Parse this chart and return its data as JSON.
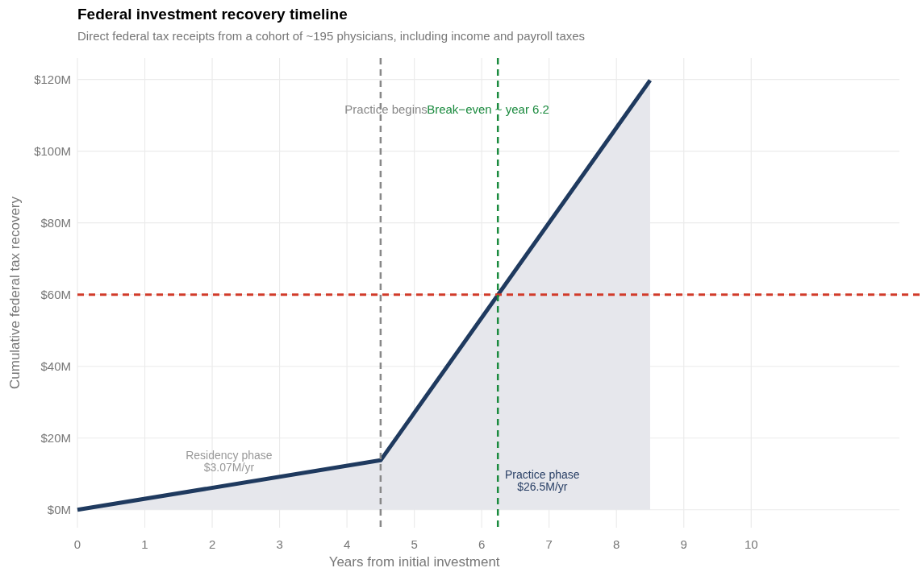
{
  "chart_data": {
    "type": "area",
    "title": "Federal investment recovery timeline",
    "subtitle": "Direct federal tax receipts from a cohort of ~195 physicians, including income and payroll taxes",
    "xlabel": "Years from initial investment",
    "ylabel": "Cumulative federal tax recovery",
    "x": [
      0,
      4.5,
      8.5
    ],
    "series": [
      {
        "color": "#1f3a5f",
        "values": [
          0,
          13.8,
          119.8
        ]
      }
    ],
    "xlim": [
      0,
      12.2
    ],
    "xticks": [
      0,
      1,
      2,
      3,
      4,
      5,
      6,
      7,
      8,
      9,
      10
    ],
    "ylim": [
      -5,
      126
    ],
    "yticks": [
      {
        "value": 0,
        "label": "$0M"
      },
      {
        "value": 20,
        "label": "$20M"
      },
      {
        "value": 40,
        "label": "$40M"
      },
      {
        "value": 60,
        "label": "$60M"
      },
      {
        "value": 80,
        "label": "$80M"
      },
      {
        "value": 100,
        "label": "$100M"
      },
      {
        "value": 120,
        "label": "$120M"
      }
    ],
    "grid": true,
    "ref_lines": [
      {
        "axis": "y",
        "value": 60,
        "color": "#d13b2a",
        "line_style": "dashed"
      },
      {
        "axis": "x",
        "value": 4.5,
        "label": "Practice begins",
        "color": "#888888",
        "line_style": "dashed"
      },
      {
        "axis": "x",
        "value": 6.24,
        "label": "Break−even ~ year 6.2",
        "color": "#1a8a3e",
        "line_style": "dashed"
      }
    ],
    "annotations": [
      "Residency phase\n$3.07M/yr",
      "Practice phase\n$26.5M/yr"
    ]
  }
}
